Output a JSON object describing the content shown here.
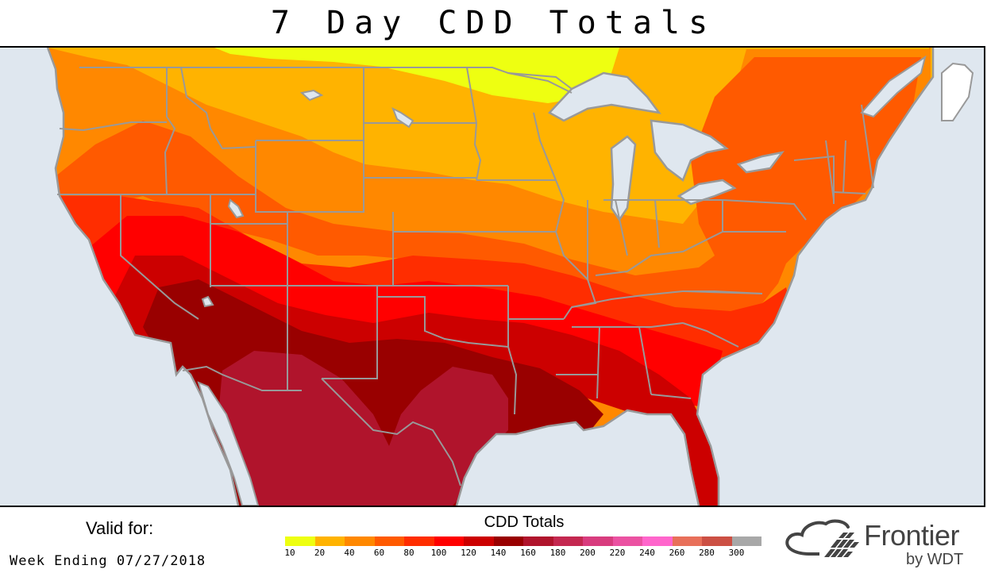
{
  "title": "7 Day CDD Totals",
  "valid": {
    "label": "Valid for:",
    "period": "Week Ending 07/27/2018"
  },
  "legend": {
    "title": "CDD Totals",
    "ticks": [
      "10",
      "20",
      "40",
      "60",
      "80",
      "100",
      "120",
      "140",
      "160",
      "180",
      "200",
      "220",
      "240",
      "260",
      "280",
      "300"
    ],
    "colors": [
      "#eeff11",
      "#ffb300",
      "#ff8800",
      "#ff5a00",
      "#ff2d00",
      "#ff0000",
      "#cc0000",
      "#990000",
      "#b0142c",
      "#c42850",
      "#d83c7e",
      "#eb52a2",
      "#ff66cc",
      "#e8705a",
      "#cc5044",
      "#a8a8a8"
    ]
  },
  "brand": {
    "name": "Frontier",
    "sub": "by WDT",
    "icon": "cloud-grid-logo-icon"
  },
  "map": {
    "water_color": "#dfe7ef",
    "border_color": "#999999",
    "region": "Contiguous United States, southern Canada, northern Mexico"
  },
  "chart_data": {
    "type": "heatmap",
    "title": "7 Day CDD Totals",
    "subtitle": "Valid for: Week Ending 07/27/2018",
    "legend_title": "CDD Totals",
    "legend_position": "bottom",
    "bins": [
      {
        "range": "10-20",
        "color": "#eeff11"
      },
      {
        "range": "20-40",
        "color": "#ffb300"
      },
      {
        "range": "40-60",
        "color": "#ff8800"
      },
      {
        "range": "60-80",
        "color": "#ff5a00"
      },
      {
        "range": "80-100",
        "color": "#ff2d00"
      },
      {
        "range": "100-120",
        "color": "#ff0000"
      },
      {
        "range": "120-140",
        "color": "#cc0000"
      },
      {
        "range": "140-160",
        "color": "#990000"
      },
      {
        "range": "160-180",
        "color": "#b0142c"
      },
      {
        "range": "180-200",
        "color": "#c42850"
      },
      {
        "range": "200-220",
        "color": "#d83c7e"
      },
      {
        "range": "220-240",
        "color": "#eb52a2"
      },
      {
        "range": "240-260",
        "color": "#ff66cc"
      },
      {
        "range": "260-280",
        "color": "#e8705a"
      },
      {
        "range": "280-300",
        "color": "#cc5044"
      },
      {
        "range": "300+",
        "color": "#a8a8a8"
      }
    ],
    "regions": [
      {
        "area": "Northern Minnesota / Ontario border",
        "bin": "10-20"
      },
      {
        "area": "Northern Plains (ND, MT east, WI, northern MI)",
        "bin": "20-40"
      },
      {
        "area": "Pacific Northwest coast, SD, NE, IA, IL north, Great Lakes, Maine",
        "bin": "40-60"
      },
      {
        "area": "Interior Northwest, KS, MO, Ohio Valley, Northeast",
        "bin": "60-80"
      },
      {
        "area": "Northern CA, NV north, CO, OK north, TN, VA, NC",
        "bin": "80-100"
      },
      {
        "area": "Central CA, NV south, UT, KS south, AR, MS, AL, GA, SC",
        "bin": "100-120"
      },
      {
        "area": "Southern CA, NM, OK south, LA, Florida",
        "bin": "120-140"
      },
      {
        "area": "Arizona, West Texas, Louisiana coast, Gulf coast",
        "bin": "140-160"
      },
      {
        "area": "Northern Mexico (Sonora/Chihuahua), South/Central Texas",
        "bin": "160-180"
      }
    ]
  }
}
